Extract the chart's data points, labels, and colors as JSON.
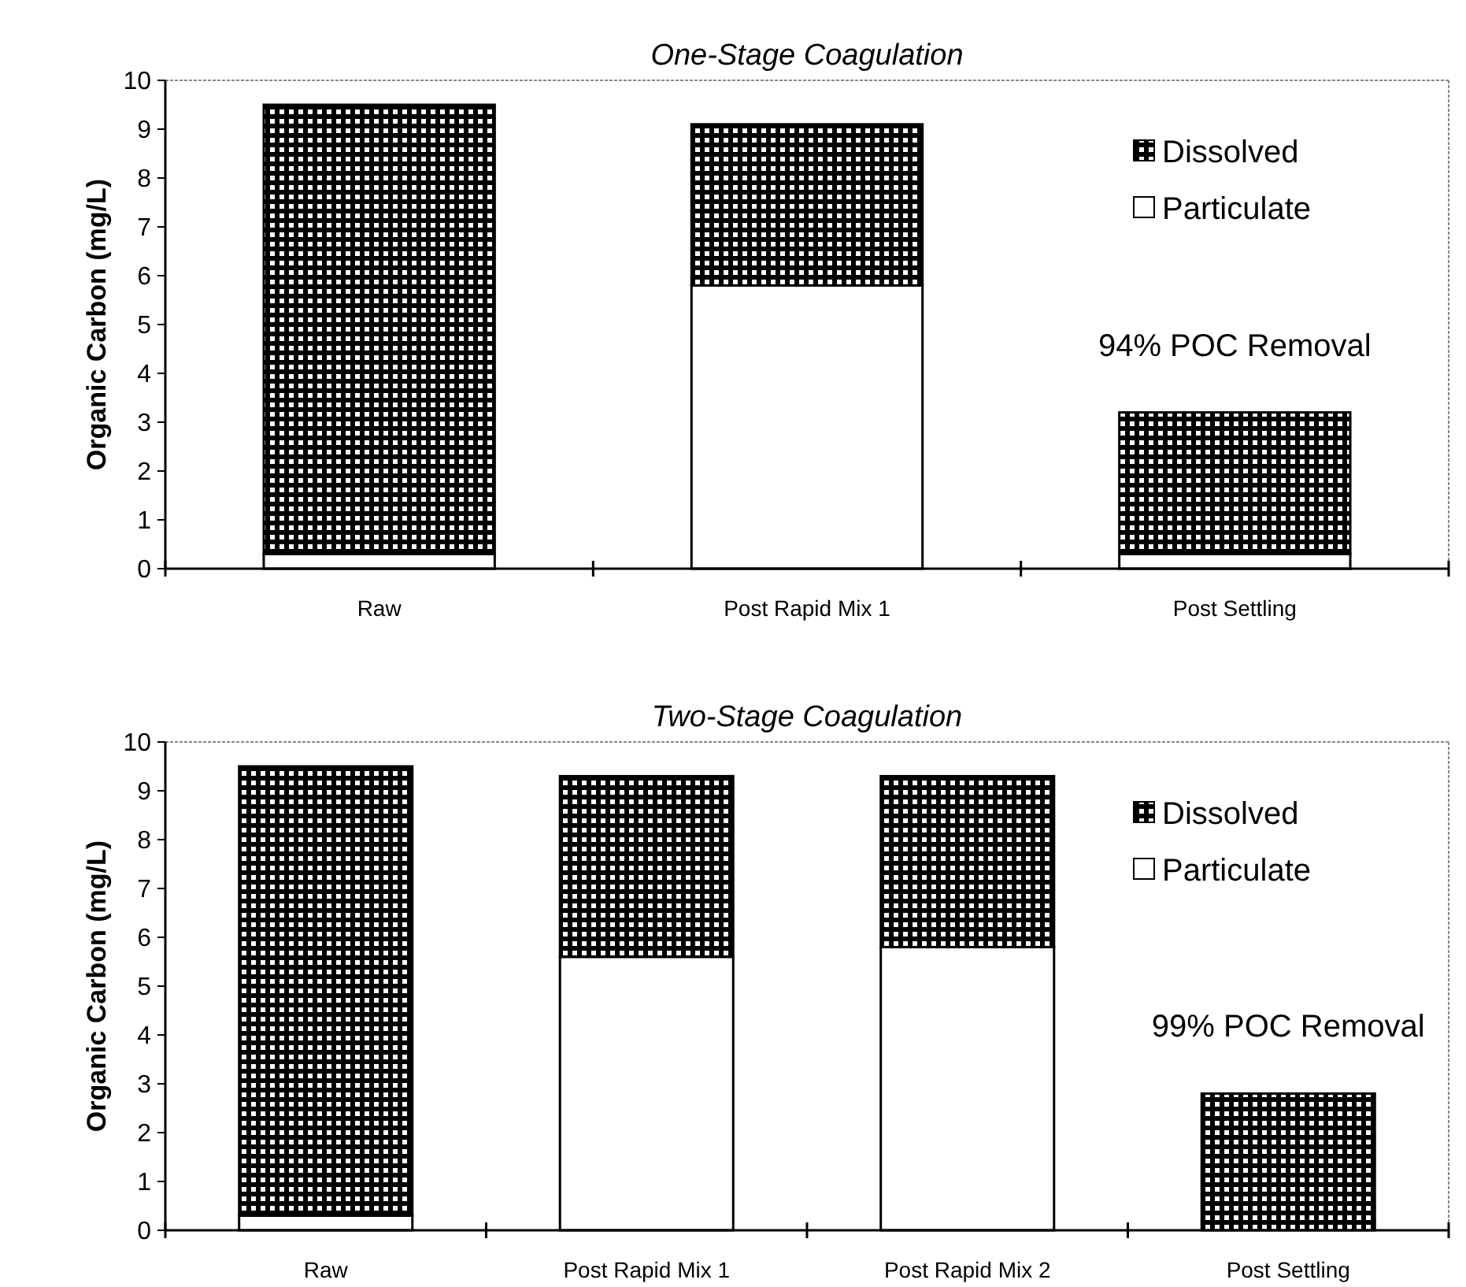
{
  "chart_data": [
    {
      "type": "bar",
      "title": "One-Stage Coagulation",
      "ylabel": "Organic Carbon (mg/L)",
      "categories": [
        "Raw",
        "Post Rapid Mix 1",
        "Post Settling"
      ],
      "stacked": true,
      "series": [
        {
          "name": "Particulate",
          "color": "#ffffff",
          "values": [
            0.3,
            5.8,
            0.3
          ]
        },
        {
          "name": "Dissolved",
          "color": "#000000",
          "values": [
            9.2,
            3.3,
            2.9
          ]
        }
      ],
      "ylim": [
        0,
        10
      ],
      "yticks": [
        0,
        1,
        2,
        3,
        4,
        5,
        6,
        7,
        8,
        9,
        10
      ],
      "legend": "top right",
      "annotations": [
        "94% POC Removal"
      ]
    },
    {
      "type": "bar",
      "title": "Two-Stage Coagulation",
      "ylabel": "Organic Carbon (mg/L)",
      "categories": [
        "Raw",
        "Post Rapid Mix 1",
        "Post Rapid Mix 2",
        "Post Settling"
      ],
      "stacked": true,
      "series": [
        {
          "name": "Particulate",
          "color": "#ffffff",
          "values": [
            0.3,
            5.6,
            5.8,
            null
          ]
        },
        {
          "name": "Dissolved",
          "color": "#000000",
          "values": [
            9.2,
            3.7,
            3.5,
            2.8
          ]
        }
      ],
      "ylim": [
        0,
        10
      ],
      "yticks": [
        0,
        1,
        2,
        3,
        4,
        5,
        6,
        7,
        8,
        9,
        10
      ],
      "legend": "top right",
      "annotations": [
        "99% POC Removal"
      ]
    }
  ]
}
